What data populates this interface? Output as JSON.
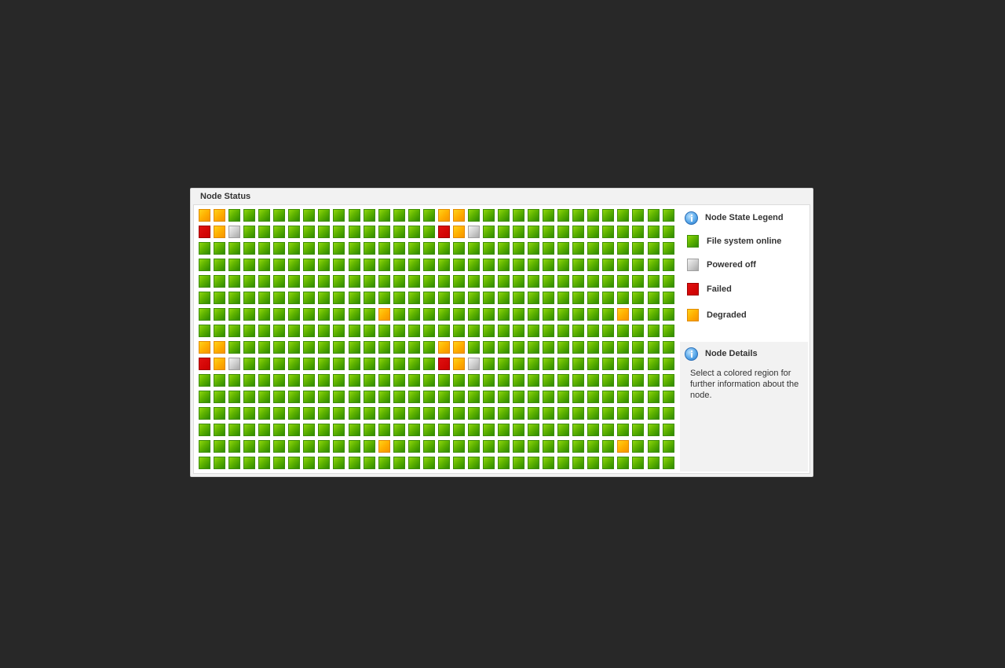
{
  "panel": {
    "title": "Node Status"
  },
  "legend": {
    "title": "Node State Legend",
    "icon": "info-icon",
    "items": [
      {
        "key": "online",
        "label": "File system online",
        "color": "#5fb300"
      },
      {
        "key": "off",
        "label": "Powered off",
        "color": "#c8c8c8"
      },
      {
        "key": "failed",
        "label": "Failed",
        "color": "#cc0000"
      },
      {
        "key": "degraded",
        "label": "Degraded",
        "color": "#ffb000"
      }
    ]
  },
  "details": {
    "title": "Node Details",
    "icon": "info-icon",
    "text": "Select a colored region for further information about the node."
  },
  "node_grid": {
    "columns": 32,
    "rows": 16,
    "default_state": "online",
    "exceptions": [
      {
        "row": 0,
        "col": 0,
        "state": "degraded"
      },
      {
        "row": 0,
        "col": 1,
        "state": "degraded"
      },
      {
        "row": 0,
        "col": 16,
        "state": "degraded"
      },
      {
        "row": 0,
        "col": 17,
        "state": "degraded"
      },
      {
        "row": 1,
        "col": 0,
        "state": "failed"
      },
      {
        "row": 1,
        "col": 1,
        "state": "degraded"
      },
      {
        "row": 1,
        "col": 2,
        "state": "off"
      },
      {
        "row": 1,
        "col": 16,
        "state": "failed"
      },
      {
        "row": 1,
        "col": 17,
        "state": "degraded"
      },
      {
        "row": 1,
        "col": 18,
        "state": "off"
      },
      {
        "row": 6,
        "col": 12,
        "state": "degraded"
      },
      {
        "row": 6,
        "col": 28,
        "state": "degraded"
      },
      {
        "row": 8,
        "col": 0,
        "state": "degraded"
      },
      {
        "row": 8,
        "col": 1,
        "state": "degraded"
      },
      {
        "row": 8,
        "col": 16,
        "state": "degraded"
      },
      {
        "row": 8,
        "col": 17,
        "state": "degraded"
      },
      {
        "row": 9,
        "col": 0,
        "state": "failed"
      },
      {
        "row": 9,
        "col": 1,
        "state": "degraded"
      },
      {
        "row": 9,
        "col": 2,
        "state": "off"
      },
      {
        "row": 9,
        "col": 16,
        "state": "failed"
      },
      {
        "row": 9,
        "col": 17,
        "state": "degraded"
      },
      {
        "row": 9,
        "col": 18,
        "state": "off"
      },
      {
        "row": 14,
        "col": 12,
        "state": "degraded"
      },
      {
        "row": 14,
        "col": 28,
        "state": "degraded"
      }
    ]
  }
}
